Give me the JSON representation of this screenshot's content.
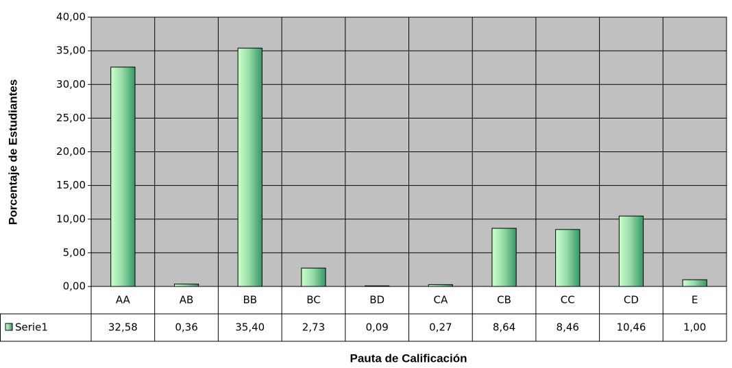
{
  "chart_data": {
    "type": "bar",
    "x_label": "Pauta de Calificación",
    "y_label": "Porcentaje de Estudiantes",
    "categories": [
      "AA",
      "AB",
      "BB",
      "BC",
      "BD",
      "CA",
      "CB",
      "CC",
      "CD",
      "E"
    ],
    "series": [
      {
        "name": "Serie1",
        "color": "#339966",
        "values": [
          32.58,
          0.36,
          35.4,
          2.73,
          0.09,
          0.27,
          8.64,
          8.46,
          10.46,
          1.0
        ],
        "value_labels": [
          "32,58",
          "0,36",
          "35,40",
          "2,73",
          "0,09",
          "0,27",
          "8,64",
          "8,46",
          "10,46",
          "1,00"
        ]
      }
    ],
    "ylim": [
      0,
      40
    ],
    "yticks": [
      {
        "value": 0,
        "label": "0,00"
      },
      {
        "value": 5,
        "label": "5,00"
      },
      {
        "value": 10,
        "label": "10,00"
      },
      {
        "value": 15,
        "label": "15,00"
      },
      {
        "value": 20,
        "label": "20,00"
      },
      {
        "value": 25,
        "label": "25,00"
      },
      {
        "value": 30,
        "label": "30,00"
      },
      {
        "value": 35,
        "label": "35,00"
      },
      {
        "value": 40,
        "label": "40,00"
      }
    ],
    "grid": true,
    "plot_background": "#c0c0c0",
    "data_table": true
  }
}
